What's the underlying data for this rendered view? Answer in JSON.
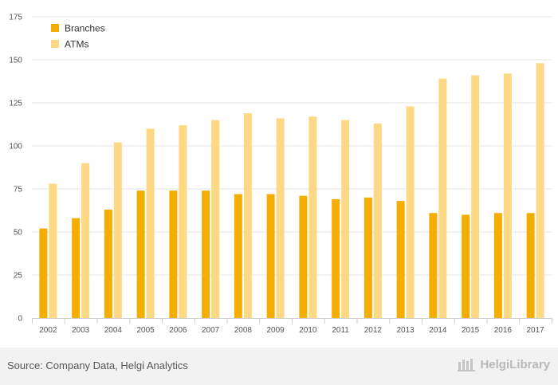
{
  "chart_data": {
    "type": "bar",
    "categories": [
      "2002",
      "2003",
      "2004",
      "2005",
      "2006",
      "2007",
      "2008",
      "2009",
      "2010",
      "2011",
      "2012",
      "2013",
      "2014",
      "2015",
      "2016",
      "2017"
    ],
    "series": [
      {
        "name": "Branches",
        "color": "#f5ad00",
        "values": [
          52,
          58,
          63,
          74,
          74,
          74,
          72,
          72,
          71,
          69,
          70,
          68,
          61,
          60,
          61,
          61
        ]
      },
      {
        "name": "ATMs",
        "color": "#fdd985",
        "values": [
          78,
          90,
          102,
          110,
          112,
          115,
          119,
          116,
          117,
          115,
          113,
          123,
          139,
          141,
          142,
          148
        ]
      }
    ],
    "ylim": [
      0,
      175
    ],
    "yticks": [
      0,
      25,
      50,
      75,
      100,
      125,
      150,
      175
    ],
    "grid": true,
    "legend": "top-left"
  },
  "footer": {
    "source": "Source: Company Data, Helgi Analytics",
    "brand": "HelgiLibrary"
  }
}
